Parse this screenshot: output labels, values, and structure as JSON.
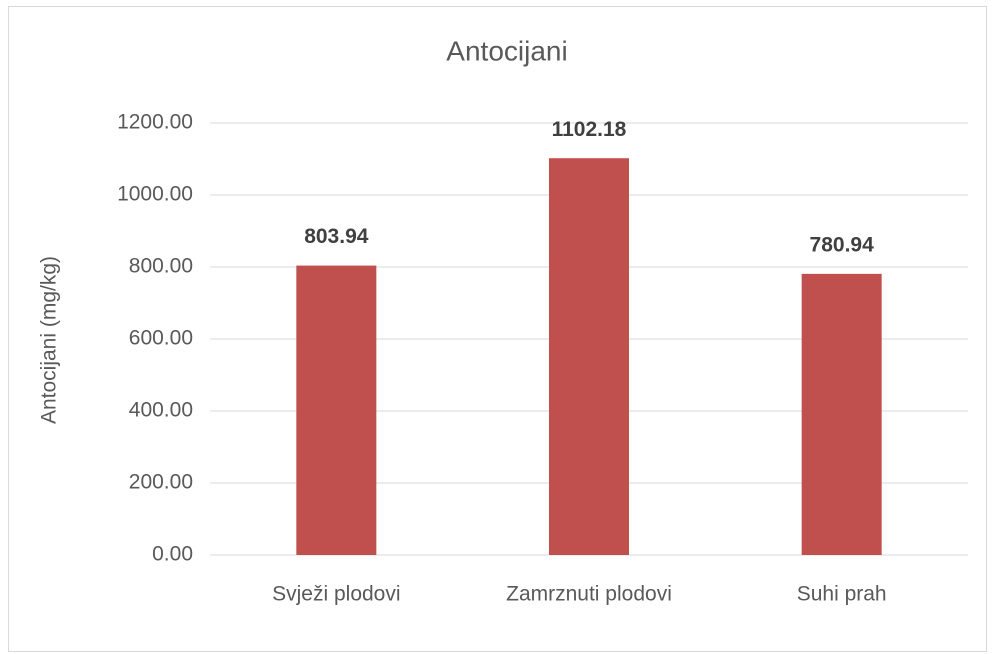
{
  "chart_data": {
    "type": "bar",
    "title": "Antocijani",
    "y_label": "Antocijani (mg/kg)",
    "categories": [
      "Svježi plodovi",
      "Zamrznuti plodovi",
      "Suhi prah"
    ],
    "values": [
      803.94,
      1102.18,
      780.94
    ],
    "color": "#c0504d",
    "ylim": [
      0,
      1200
    ],
    "yticks": [
      {
        "value": 0,
        "label": "0.00"
      },
      {
        "value": 200,
        "label": "200.00"
      },
      {
        "value": 400,
        "label": "400.00"
      },
      {
        "value": 600,
        "label": "600.00"
      },
      {
        "value": 800,
        "label": "800.00"
      },
      {
        "value": 1000,
        "label": "1000.00"
      },
      {
        "value": 1200,
        "label": "1200.00"
      }
    ],
    "grid": true
  }
}
